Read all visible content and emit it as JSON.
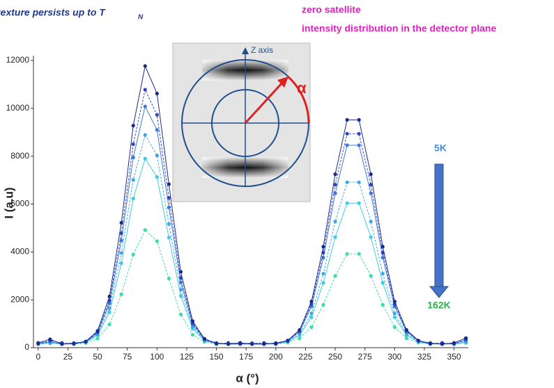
{
  "chart_data": {
    "type": "line",
    "title": "texture persists up to T",
    "title_subscript": "N",
    "subtitle_lines": [
      "zero satellite",
      "intensity  distribution in the detector plane"
    ],
    "x_label": "α (°)",
    "y_label": "I (a.u)",
    "inset_labels": {
      "axis": "Z axis",
      "angle": "α"
    },
    "annotations": {
      "start": "5K",
      "end": "162K"
    },
    "x": [
      0,
      10,
      20,
      30,
      40,
      50,
      60,
      70,
      80,
      90,
      100,
      110,
      120,
      130,
      140,
      150,
      160,
      170,
      180,
      190,
      200,
      210,
      220,
      230,
      240,
      250,
      260,
      270,
      280,
      290,
      300,
      310,
      320,
      330,
      340,
      350,
      360
    ],
    "series": [
      {
        "color": "#1a2a8a",
        "values": [
          200,
          350,
          150,
          170,
          260,
          700,
          2140,
          5220,
          9280,
          11770,
          10620,
          6830,
          3170,
          1110,
          370,
          180,
          150,
          200,
          150,
          150,
          180,
          300,
          740,
          1930,
          4220,
          7250,
          9520,
          9520,
          7250,
          4220,
          1930,
          740,
          300,
          180,
          150,
          200,
          400
        ]
      },
      {
        "color": "#2f46c0",
        "values": [
          150,
          300,
          200,
          160,
          250,
          650,
          1970,
          4780,
          8500,
          10780,
          9730,
          6260,
          2910,
          1030,
          350,
          160,
          200,
          150,
          180,
          200,
          150,
          290,
          700,
          1820,
          3970,
          6810,
          8940,
          8940,
          6810,
          3970,
          1820,
          700,
          290,
          160,
          200,
          150,
          350
        ]
      },
      {
        "color": "#3d78dc",
        "values": [
          180,
          250,
          150,
          200,
          240,
          620,
          1850,
          4480,
          7950,
          10080,
          9100,
          5860,
          2730,
          970,
          340,
          200,
          150,
          150,
          160,
          150,
          200,
          280,
          670,
          1720,
          3760,
          6450,
          8460,
          8460,
          6450,
          3760,
          1720,
          670,
          280,
          200,
          150,
          180,
          300
        ]
      },
      {
        "color": "#3ea6e2",
        "values": [
          150,
          200,
          180,
          150,
          230,
          560,
          1650,
          3960,
          7010,
          8890,
          8030,
          5170,
          2420,
          870,
          310,
          150,
          180,
          200,
          150,
          180,
          150,
          260,
          580,
          1430,
          3090,
          5270,
          6910,
          6910,
          5270,
          3090,
          1430,
          580,
          260,
          150,
          180,
          150,
          250
        ]
      },
      {
        "color": "#3fcbe2",
        "values": [
          160,
          220,
          150,
          180,
          220,
          520,
          1480,
          3530,
          6230,
          7900,
          7130,
          4600,
          2160,
          790,
          290,
          180,
          150,
          160,
          200,
          150,
          170,
          240,
          520,
          1270,
          2710,
          4620,
          6040,
          6040,
          4620,
          2710,
          1270,
          520,
          240,
          170,
          150,
          160,
          220
        ]
      },
      {
        "color": "#3ddba6",
        "values": [
          150,
          180,
          160,
          150,
          190,
          380,
          970,
          2230,
          3890,
          4920,
          4450,
          2890,
          1390,
          540,
          240,
          150,
          160,
          150,
          150,
          160,
          150,
          210,
          390,
          860,
          1790,
          3000,
          3920,
          3920,
          3000,
          1790,
          860,
          390,
          210,
          150,
          160,
          150,
          200
        ]
      }
    ],
    "xlim": [
      -4,
      362
    ],
    "ylim": [
      0,
      12000
    ],
    "xticks": [
      0,
      25,
      50,
      75,
      100,
      125,
      150,
      175,
      200,
      225,
      250,
      275,
      300,
      325,
      350
    ],
    "yticks": [
      0,
      2000,
      4000,
      6000,
      8000,
      10000,
      12000
    ]
  }
}
